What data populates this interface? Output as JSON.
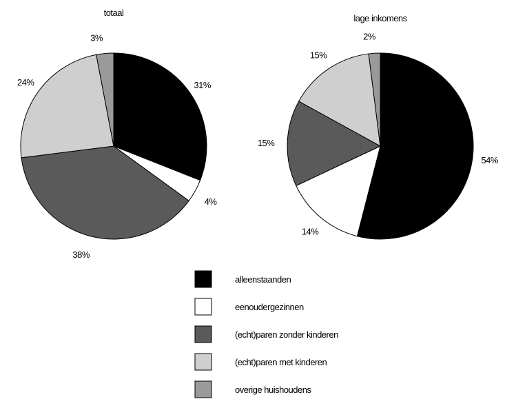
{
  "chart_data": [
    {
      "type": "pie",
      "title": "totaal",
      "categories": [
        "alleenstaanden",
        "eenoudergezinnen",
        "(echt)paren zonder kinderen",
        "(echt)paren met kinderen",
        "overige huishoudens"
      ],
      "values": [
        31,
        4,
        38,
        24,
        3
      ],
      "labels": [
        "31%",
        "4%",
        "38%",
        "24%",
        "3%"
      ]
    },
    {
      "type": "pie",
      "title": "lage inkomens",
      "categories": [
        "alleenstaanden",
        "eenoudergezinnen",
        "(echt)paren zonder kinderen",
        "(echt)paren met kinderen",
        "overige huishoudens"
      ],
      "values": [
        54,
        14,
        15,
        15,
        2
      ],
      "labels": [
        "54%",
        "14%",
        "15%",
        "15%",
        "2%"
      ]
    }
  ],
  "legend": {
    "placement": "bottom-center",
    "items": [
      {
        "label": "alleenstaanden",
        "color": "#000000"
      },
      {
        "label": "eenoudergezinnen",
        "color": "#ffffff"
      },
      {
        "label": "(echt)paren zonder kinderen",
        "color": "#5a5a5a"
      },
      {
        "label": "(echt)paren met kinderen",
        "color": "#cfcfcf"
      },
      {
        "label": "overige huishoudens",
        "color": "#9a9a9a"
      }
    ]
  },
  "colors": {
    "alleenstaanden": "#000000",
    "eenoudergezinnen": "#ffffff",
    "paren_zonder_kinderen": "#5a5a5a",
    "paren_met_kinderen": "#cfcfcf",
    "overige": "#9a9a9a",
    "stroke": "#000000"
  }
}
